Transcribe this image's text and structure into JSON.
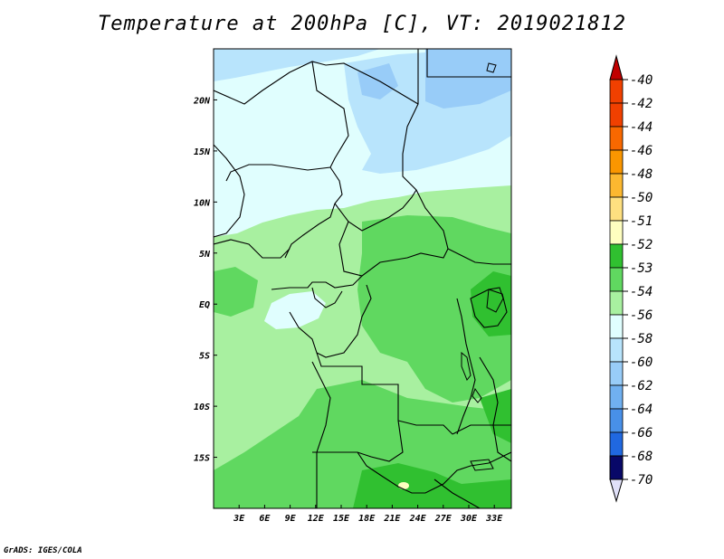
{
  "title": "Temperature at 200hPa [C], VT: 2019021812",
  "footer": "GrADS: IGES/COLA",
  "map": {
    "lon_range": [
      0,
      35
    ],
    "lat_range": [
      -20,
      25
    ],
    "lat_ticks": [
      {
        "value": 20,
        "label": "20N"
      },
      {
        "value": 15,
        "label": "15N"
      },
      {
        "value": 10,
        "label": "10N"
      },
      {
        "value": 5,
        "label": "5N"
      },
      {
        "value": 0,
        "label": "EQ"
      },
      {
        "value": -5,
        "label": "5S"
      },
      {
        "value": -10,
        "label": "10S"
      },
      {
        "value": -15,
        "label": "15S"
      }
    ],
    "lon_ticks": [
      {
        "value": 3,
        "label": "3E"
      },
      {
        "value": 6,
        "label": "6E"
      },
      {
        "value": 9,
        "label": "9E"
      },
      {
        "value": 12,
        "label": "12E"
      },
      {
        "value": 15,
        "label": "15E"
      },
      {
        "value": 18,
        "label": "18E"
      },
      {
        "value": 21,
        "label": "21E"
      },
      {
        "value": 24,
        "label": "24E"
      },
      {
        "value": 27,
        "label": "27E"
      },
      {
        "value": 30,
        "label": "30E"
      },
      {
        "value": 33,
        "label": "33E"
      }
    ]
  },
  "colorbar": {
    "levels": [
      {
        "label": "-40",
        "color": "#d82000"
      },
      {
        "label": "-42",
        "color": "#f04000"
      },
      {
        "label": "-44",
        "color": "#f86800"
      },
      {
        "label": "-46",
        "color": "#fa9600"
      },
      {
        "label": "-48",
        "color": "#fcb830"
      },
      {
        "label": "-50",
        "color": "#fee080"
      },
      {
        "label": "-51",
        "color": "#fefec0"
      },
      {
        "label": "-52",
        "color": "#30c030"
      },
      {
        "label": "-53",
        "color": "#60d860"
      },
      {
        "label": "-54",
        "color": "#a8f0a0"
      },
      {
        "label": "-56",
        "color": "#e0fefe"
      },
      {
        "label": "-58",
        "color": "#b8e4fc"
      },
      {
        "label": "-60",
        "color": "#98ccf8"
      },
      {
        "label": "-62",
        "color": "#70b0f0"
      },
      {
        "label": "-64",
        "color": "#4890e8"
      },
      {
        "label": "-66",
        "color": "#2068e0"
      },
      {
        "label": "-68",
        "color": "#0c44c8"
      },
      {
        "label": "-70",
        "color": "#0824a0"
      }
    ],
    "top_arrow_color": "#c00000",
    "bottom_arrow_color": "#e0e0f8",
    "bottom_block_color": "#080868"
  }
}
